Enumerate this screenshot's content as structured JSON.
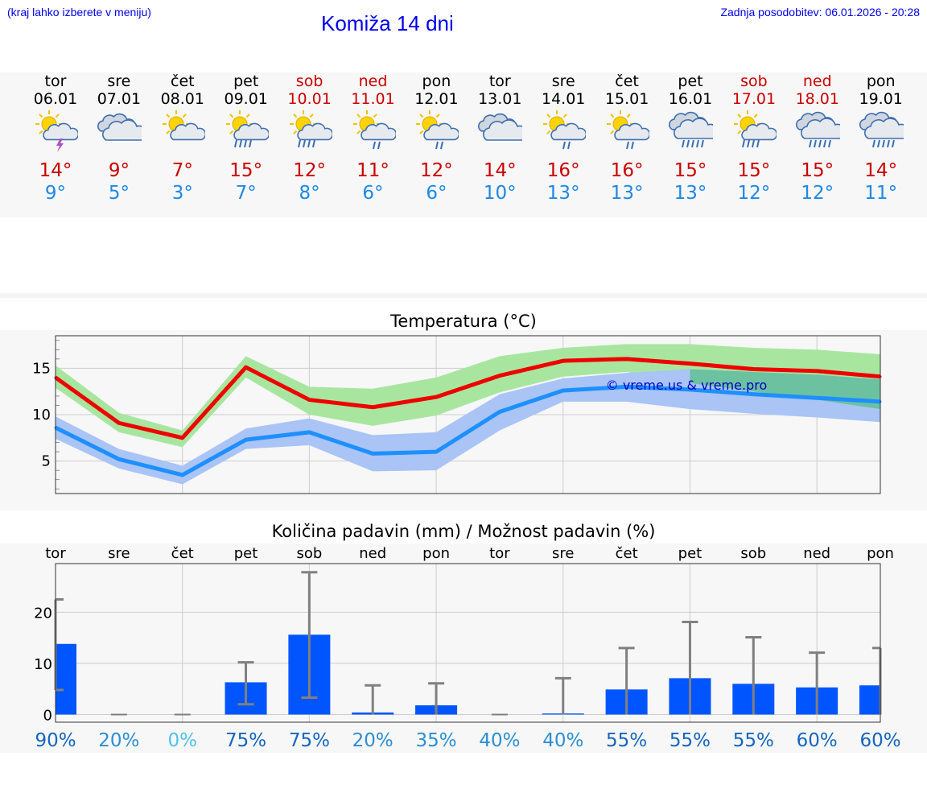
{
  "header": {
    "location_hint": "(kraj lahko izberete v meniju)",
    "title": "Komiža 14 dni",
    "updated": "Zadnja posodobitev: 06.01.2026 - 20:28"
  },
  "days": [
    {
      "name": "tor",
      "date": "06.01",
      "icon": "sun-cloud-thunder-icon",
      "max": "14°",
      "min": "9°",
      "weekend": false
    },
    {
      "name": "sre",
      "date": "07.01",
      "icon": "cloudy-icon",
      "max": "9°",
      "min": "5°",
      "weekend": false
    },
    {
      "name": "čet",
      "date": "08.01",
      "icon": "partly-sunny-icon",
      "max": "7°",
      "min": "3°",
      "weekend": false
    },
    {
      "name": "pet",
      "date": "09.01",
      "icon": "sun-cloud-rain-icon",
      "max": "15°",
      "min": "7°",
      "weekend": false
    },
    {
      "name": "sob",
      "date": "10.01",
      "icon": "sun-cloud-rain-icon",
      "max": "12°",
      "min": "8°",
      "weekend": true
    },
    {
      "name": "ned",
      "date": "11.01",
      "icon": "sun-cloud-light-rain-icon",
      "max": "11°",
      "min": "6°",
      "weekend": true
    },
    {
      "name": "pon",
      "date": "12.01",
      "icon": "sun-cloud-light-rain-icon",
      "max": "12°",
      "min": "6°",
      "weekend": false
    },
    {
      "name": "tor",
      "date": "13.01",
      "icon": "cloudy-icon",
      "max": "14°",
      "min": "10°",
      "weekend": false
    },
    {
      "name": "sre",
      "date": "14.01",
      "icon": "sun-cloud-light-rain-icon",
      "max": "16°",
      "min": "13°",
      "weekend": false
    },
    {
      "name": "čet",
      "date": "15.01",
      "icon": "sun-cloud-light-rain-icon",
      "max": "16°",
      "min": "13°",
      "weekend": false
    },
    {
      "name": "pet",
      "date": "16.01",
      "icon": "cloud-rain-icon",
      "max": "15°",
      "min": "13°",
      "weekend": false
    },
    {
      "name": "sob",
      "date": "17.01",
      "icon": "sun-cloud-rain-icon",
      "max": "15°",
      "min": "12°",
      "weekend": true
    },
    {
      "name": "ned",
      "date": "18.01",
      "icon": "cloud-rain-icon",
      "max": "15°",
      "min": "12°",
      "weekend": true
    },
    {
      "name": "pon",
      "date": "19.01",
      "icon": "cloud-rain-icon",
      "max": "14°",
      "min": "11°",
      "weekend": false
    }
  ],
  "colors": {
    "max_line": "#ee0000",
    "min_line": "#1e8fff",
    "max_band": "#a8e6a0",
    "min_band": "#a9c4f5",
    "overlap_band": "#6cc1a0",
    "bar": "#0055ff",
    "whisker": "#808080",
    "grid": "#cccccc"
  },
  "chart_data": [
    {
      "type": "line",
      "title": "Temperatura (°C)",
      "x": [
        "06.01",
        "07.01",
        "08.01",
        "09.01",
        "10.01",
        "11.01",
        "12.01",
        "13.01",
        "14.01",
        "15.01",
        "16.01",
        "17.01",
        "18.01",
        "19.01"
      ],
      "xlim": [
        0,
        13
      ],
      "ylim": [
        1.5,
        18.5
      ],
      "yticks": [
        5,
        10,
        15
      ],
      "watermark": "© vreme.us & vreme.pro",
      "series": [
        {
          "name": "max",
          "values": [
            14.0,
            9.1,
            7.5,
            15.1,
            11.6,
            10.8,
            11.9,
            14.2,
            15.8,
            16.0,
            15.5,
            14.9,
            14.7,
            14.1
          ],
          "band_low": [
            12.9,
            8.1,
            6.5,
            14.0,
            10.0,
            8.8,
            9.9,
            12.4,
            14.1,
            14.6,
            13.4,
            12.5,
            11.6,
            10.6
          ],
          "band_high": [
            15.3,
            10.2,
            8.3,
            16.3,
            13.0,
            12.8,
            14.0,
            16.3,
            17.2,
            17.6,
            17.6,
            17.2,
            17.0,
            16.5
          ]
        },
        {
          "name": "min",
          "values": [
            8.6,
            5.2,
            3.5,
            7.3,
            8.1,
            5.8,
            6.0,
            10.3,
            12.6,
            13.0,
            12.7,
            12.2,
            11.8,
            11.4
          ],
          "band_low": [
            7.4,
            4.2,
            2.5,
            6.3,
            6.7,
            3.9,
            4.0,
            8.3,
            11.4,
            11.4,
            10.6,
            10.1,
            9.7,
            9.2
          ],
          "band_high": [
            9.8,
            6.3,
            4.5,
            8.5,
            9.6,
            7.8,
            8.1,
            12.2,
            13.9,
            14.5,
            14.9,
            14.6,
            14.3,
            13.8
          ]
        }
      ]
    },
    {
      "type": "bar",
      "title": "Količina padavin (mm) / Možnost padavin (%)",
      "categories": [
        "tor",
        "sre",
        "čet",
        "pet",
        "sob",
        "ned",
        "pon",
        "tor",
        "sre",
        "čet",
        "pet",
        "sob",
        "ned",
        "pon"
      ],
      "values": [
        13.8,
        0,
        0,
        6.3,
        15.6,
        0.4,
        1.8,
        0,
        0.2,
        4.9,
        7.1,
        6.0,
        5.3,
        5.7
      ],
      "error_high": [
        22.5,
        0,
        0,
        10.2,
        27.8,
        5.7,
        6.1,
        0,
        7.1,
        13.0,
        18.1,
        15.1,
        12.1,
        13.0
      ],
      "error_low": [
        4.8,
        0,
        0,
        2.0,
        3.3,
        0,
        0,
        0,
        0,
        0,
        0,
        0,
        0,
        0
      ],
      "ylim": [
        -1.5,
        29.5
      ],
      "yticks": [
        0,
        10,
        20
      ],
      "probability": [
        "90%",
        "20%",
        "0%",
        "75%",
        "75%",
        "20%",
        "35%",
        "40%",
        "40%",
        "55%",
        "55%",
        "55%",
        "60%",
        "60%"
      ],
      "probability_values": [
        90,
        20,
        0,
        75,
        75,
        20,
        35,
        40,
        40,
        55,
        55,
        55,
        60,
        60
      ]
    }
  ]
}
